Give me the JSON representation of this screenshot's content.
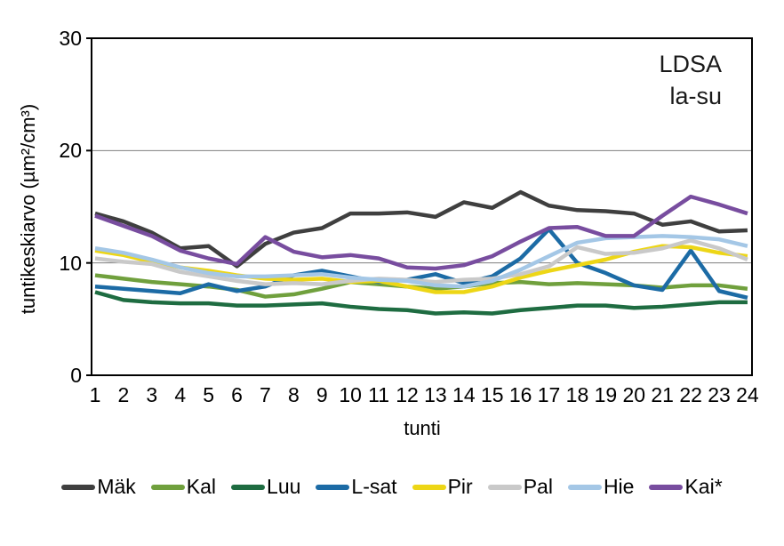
{
  "chart": {
    "annotation_line1": "LDSA",
    "annotation_line2": "la-su"
  },
  "chart_data": {
    "type": "line",
    "title": "LDSA la-su",
    "xlabel": "tunti",
    "ylabel": "tuntikeskiarvo (µm²/cm³)",
    "x": [
      1,
      2,
      3,
      4,
      5,
      6,
      7,
      8,
      9,
      10,
      11,
      12,
      13,
      14,
      15,
      16,
      17,
      18,
      19,
      20,
      21,
      22,
      23,
      24
    ],
    "xlim": [
      1,
      24
    ],
    "ylim": [
      0,
      30
    ],
    "yticks": [
      0,
      10,
      20,
      30
    ],
    "gridlines_y": [
      10,
      20
    ],
    "grid": true,
    "legend_position": "bottom",
    "axis_color": "#000000",
    "gridline_color": "#7f7f7f",
    "series": [
      {
        "name": "Mäk",
        "color": "#3f3f3f",
        "values": [
          14.4,
          13.7,
          12.7,
          11.3,
          11.5,
          9.7,
          11.7,
          12.7,
          13.1,
          14.4,
          14.4,
          14.5,
          14.1,
          15.4,
          14.9,
          16.3,
          15.1,
          14.7,
          14.6,
          14.4,
          13.4,
          13.7,
          12.8,
          12.9
        ]
      },
      {
        "name": "Kal",
        "color": "#70a03d",
        "values": [
          8.9,
          8.6,
          8.3,
          8.1,
          7.9,
          7.6,
          7.0,
          7.2,
          7.7,
          8.3,
          8.1,
          7.9,
          7.7,
          7.9,
          8.2,
          8.3,
          8.1,
          8.2,
          8.1,
          8.0,
          7.8,
          8.0,
          8.0,
          7.7
        ]
      },
      {
        "name": "Luu",
        "color": "#1e6c41",
        "values": [
          7.4,
          6.7,
          6.5,
          6.4,
          6.4,
          6.2,
          6.2,
          6.3,
          6.4,
          6.1,
          5.9,
          5.8,
          5.5,
          5.6,
          5.5,
          5.8,
          6.0,
          6.2,
          6.2,
          6.0,
          6.1,
          6.3,
          6.5,
          6.5
        ]
      },
      {
        "name": "L-sat",
        "color": "#1c6ba5",
        "values": [
          7.9,
          7.7,
          7.5,
          7.3,
          8.1,
          7.5,
          7.9,
          8.9,
          9.3,
          8.8,
          8.3,
          8.5,
          9.0,
          8.2,
          8.8,
          10.4,
          13.0,
          10.0,
          9.1,
          8.0,
          7.6,
          11.1,
          7.5,
          6.9
        ]
      },
      {
        "name": "Pir",
        "color": "#edd616",
        "values": [
          11.1,
          10.7,
          10.1,
          9.6,
          9.3,
          8.9,
          8.6,
          8.5,
          8.6,
          8.3,
          8.4,
          7.9,
          7.4,
          7.4,
          7.9,
          8.7,
          9.3,
          9.8,
          10.3,
          11.0,
          11.5,
          11.4,
          10.9,
          10.6
        ]
      },
      {
        "name": "Pal",
        "color": "#c9c9c9",
        "values": [
          10.4,
          10.1,
          9.9,
          9.2,
          8.8,
          8.4,
          8.1,
          8.2,
          8.1,
          8.4,
          8.6,
          8.5,
          8.3,
          8.5,
          8.6,
          9.0,
          9.7,
          11.4,
          10.8,
          10.9,
          11.3,
          12.0,
          11.3,
          10.3
        ]
      },
      {
        "name": "Hie",
        "color": "#a4c7e6",
        "values": [
          11.3,
          10.9,
          10.3,
          9.6,
          9.1,
          8.8,
          8.8,
          8.9,
          9.0,
          8.7,
          8.5,
          8.4,
          8.0,
          7.9,
          8.4,
          9.4,
          10.6,
          11.8,
          12.2,
          12.3,
          12.4,
          12.3,
          12.1,
          11.5
        ]
      },
      {
        "name": "Kai*",
        "color": "#784d9f",
        "values": [
          14.2,
          13.3,
          12.4,
          11.1,
          10.4,
          9.9,
          12.3,
          11.0,
          10.5,
          10.7,
          10.4,
          9.6,
          9.5,
          9.8,
          10.6,
          11.9,
          13.1,
          13.2,
          12.4,
          12.4,
          14.2,
          15.9,
          15.2,
          14.4
        ]
      }
    ]
  }
}
